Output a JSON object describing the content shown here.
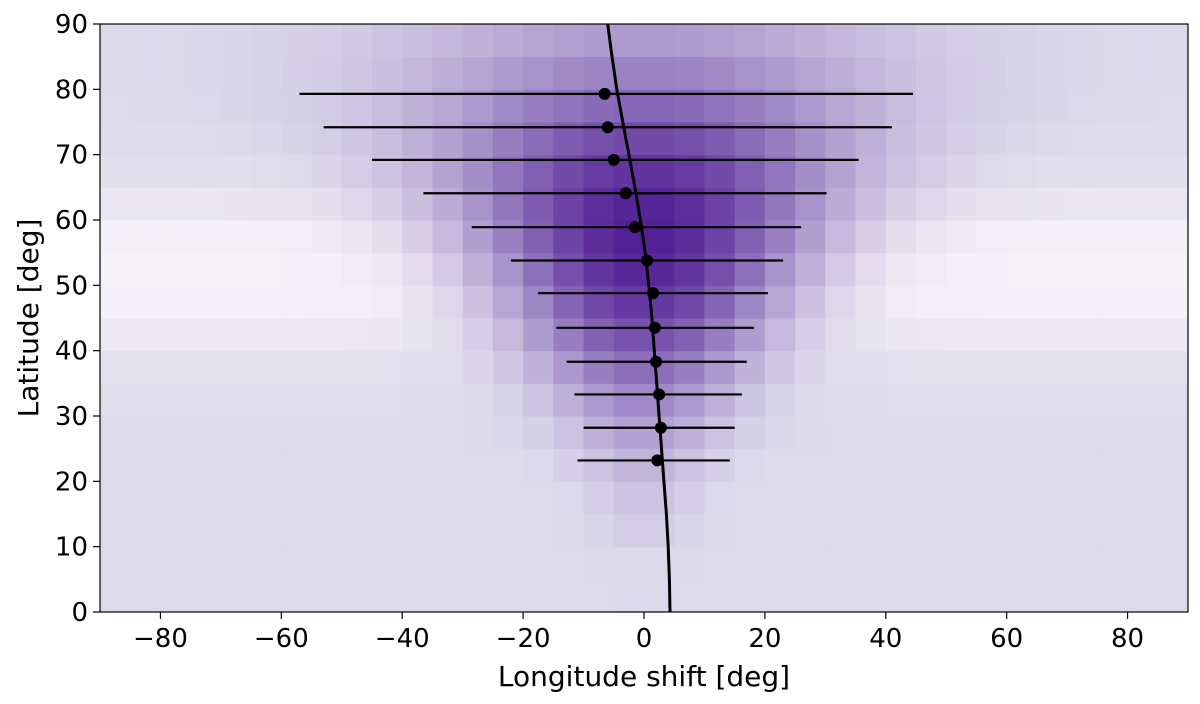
{
  "chart_data": {
    "type": "scatter",
    "title": "",
    "xlabel": "Longitude shift [deg]",
    "ylabel": "Latitude [deg]",
    "xlim": [
      -90,
      90
    ],
    "ylim": [
      0,
      90
    ],
    "x_ticks": [
      -80,
      -60,
      -40,
      -20,
      0,
      20,
      40,
      60,
      80
    ],
    "x_tick_labels": [
      "−80",
      "−60",
      "−40",
      "−20",
      "0",
      "20",
      "40",
      "60",
      "80"
    ],
    "y_ticks": [
      0,
      10,
      20,
      30,
      40,
      50,
      60,
      70,
      80,
      90
    ],
    "y_tick_labels": [
      "0",
      "10",
      "20",
      "30",
      "40",
      "50",
      "60",
      "70",
      "80",
      "90"
    ],
    "grid": false,
    "background": {
      "type": "heatmap",
      "colormap": "purples",
      "colors": {
        "low": "#f5f2f8",
        "base": "#dcdaeb",
        "high": "#4a1590"
      },
      "x_bin_width": 5,
      "y_bin_width": 5
    },
    "points": {
      "name": "",
      "color": "#000000",
      "x": [
        2.2,
        2.8,
        2.5,
        2.0,
        1.8,
        1.5,
        0.5,
        -1.5,
        -3.0,
        -5.0,
        -6.0,
        -6.5
      ],
      "y": [
        23.2,
        28.2,
        33.3,
        38.3,
        43.5,
        48.8,
        53.8,
        58.9,
        64.1,
        69.2,
        74.2,
        79.3
      ],
      "x_err_low": [
        -11.0,
        -10.0,
        -11.5,
        -12.8,
        -14.5,
        -17.5,
        -22.0,
        -28.5,
        -36.5,
        -45.0,
        -53.0,
        -57.0
      ],
      "x_err_high": [
        14.2,
        15.0,
        16.2,
        17.0,
        18.2,
        20.5,
        23.0,
        26.0,
        30.2,
        35.5,
        41.0,
        44.5
      ]
    },
    "fit_curve": {
      "name": "",
      "color": "#000000",
      "y": [
        0,
        5,
        10,
        15,
        20,
        25,
        30,
        35,
        40,
        45,
        50,
        55,
        60,
        65,
        70,
        75,
        80,
        85,
        90
      ],
      "x": [
        4.3,
        4.2,
        4.0,
        3.7,
        3.3,
        2.9,
        2.5,
        2.1,
        1.7,
        1.3,
        0.8,
        0.2,
        -0.6,
        -1.5,
        -2.5,
        -3.5,
        -4.5,
        -5.3,
        -6.0
      ]
    }
  }
}
